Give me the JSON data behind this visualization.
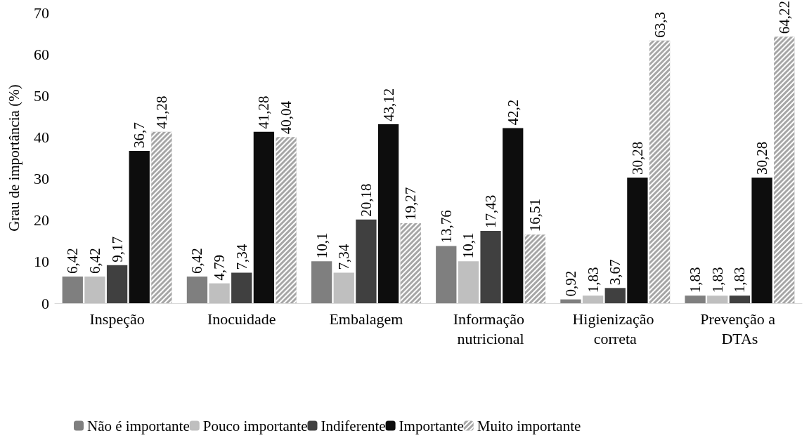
{
  "chart_data": {
    "type": "bar",
    "ylabel": "Grau de importância (%)",
    "categories": [
      "Inspeção",
      "Inocuidade",
      "Embalagem",
      "Informação nutricional",
      "Higienização correta",
      "Prevenção a DTAs"
    ],
    "ylim": [
      0,
      70
    ],
    "yticks": [
      0,
      10,
      20,
      30,
      40,
      50,
      60,
      70
    ],
    "grid": false,
    "legend": "bottom",
    "series": [
      {
        "name": "Não é importante",
        "color": "#7f7f7f",
        "values": [
          6.42,
          6.42,
          10.1,
          13.76,
          0.92,
          1.83
        ],
        "value_labels": [
          "6,42",
          "6,42",
          "10,1",
          "13,76",
          "0,92",
          "1,83"
        ]
      },
      {
        "name": "Pouco importante",
        "color": "#bfbfbf",
        "values": [
          6.42,
          4.79,
          7.34,
          10.1,
          1.83,
          1.83
        ],
        "value_labels": [
          "6,42",
          "4,79",
          "7,34",
          "10,1",
          "1,83",
          "1,83"
        ]
      },
      {
        "name": "Indiferente",
        "color": "#404040",
        "values": [
          9.17,
          7.34,
          20.18,
          17.43,
          3.67,
          1.83
        ],
        "value_labels": [
          "9,17",
          "7,34",
          "20,18",
          "17,43",
          "3,67",
          "1,83"
        ]
      },
      {
        "name": "Importante",
        "color": "#0d0d0d",
        "values": [
          36.7,
          41.28,
          43.12,
          42.2,
          30.28,
          30.28
        ],
        "value_labels": [
          "36,7",
          "41,28",
          "43,12",
          "42,2",
          "30,28",
          "30,28"
        ]
      },
      {
        "name": "Muito importante",
        "color": "#a6a6a6",
        "values": [
          41.28,
          40.04,
          19.27,
          16.51,
          63.3,
          64.22
        ],
        "value_labels": [
          "41,28",
          "40,04",
          "19,27",
          "16,51",
          "63,3",
          "64,22"
        ]
      }
    ]
  }
}
